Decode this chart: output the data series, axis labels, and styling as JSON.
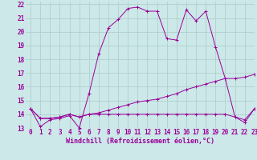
{
  "bg_color": "#cce8e8",
  "grid_color": "#aacccc",
  "line_color": "#990099",
  "xlim": [
    -0.5,
    23
  ],
  "ylim": [
    13,
    22.2
  ],
  "xticks": [
    0,
    1,
    2,
    3,
    4,
    5,
    6,
    7,
    8,
    9,
    10,
    11,
    12,
    13,
    14,
    15,
    16,
    17,
    18,
    19,
    20,
    21,
    22,
    23
  ],
  "yticks": [
    13,
    14,
    15,
    16,
    17,
    18,
    19,
    20,
    21,
    22
  ],
  "xlabel": "Windchill (Refroidissement éolien,°C)",
  "line1_x": [
    0,
    1,
    2,
    3,
    4,
    5,
    6,
    7,
    8,
    9,
    10,
    11,
    12,
    13,
    14,
    15,
    16,
    17,
    18,
    19,
    20,
    21,
    22,
    23
  ],
  "line1_y": [
    14.4,
    13.1,
    13.6,
    13.7,
    13.9,
    13.0,
    15.5,
    18.4,
    20.3,
    20.9,
    21.7,
    21.8,
    21.5,
    21.5,
    19.5,
    19.4,
    21.6,
    20.8,
    21.5,
    18.9,
    16.6,
    13.8,
    13.4,
    14.4
  ],
  "line2_x": [
    0,
    1,
    2,
    3,
    4,
    5,
    6,
    7,
    8,
    9,
    10,
    11,
    12,
    13,
    14,
    15,
    16,
    17,
    18,
    19,
    20,
    21,
    22,
    23
  ],
  "line2_y": [
    14.4,
    13.7,
    13.7,
    13.8,
    14.0,
    13.8,
    14.0,
    14.1,
    14.3,
    14.5,
    14.7,
    14.9,
    15.0,
    15.1,
    15.3,
    15.5,
    15.8,
    16.0,
    16.2,
    16.4,
    16.6,
    16.6,
    16.7,
    16.9
  ],
  "line3_x": [
    0,
    1,
    2,
    3,
    4,
    5,
    6,
    7,
    8,
    9,
    10,
    11,
    12,
    13,
    14,
    15,
    16,
    17,
    18,
    19,
    20,
    21,
    22,
    23
  ],
  "line3_y": [
    14.4,
    13.7,
    13.7,
    13.8,
    14.0,
    13.8,
    14.0,
    14.0,
    14.0,
    14.0,
    14.0,
    14.0,
    14.0,
    14.0,
    14.0,
    14.0,
    14.0,
    14.0,
    14.0,
    14.0,
    14.0,
    13.8,
    13.6,
    14.4
  ],
  "tick_fontsize": 5.5,
  "xlabel_fontsize": 6.0,
  "marker_size": 2.5,
  "line_width": 0.7
}
